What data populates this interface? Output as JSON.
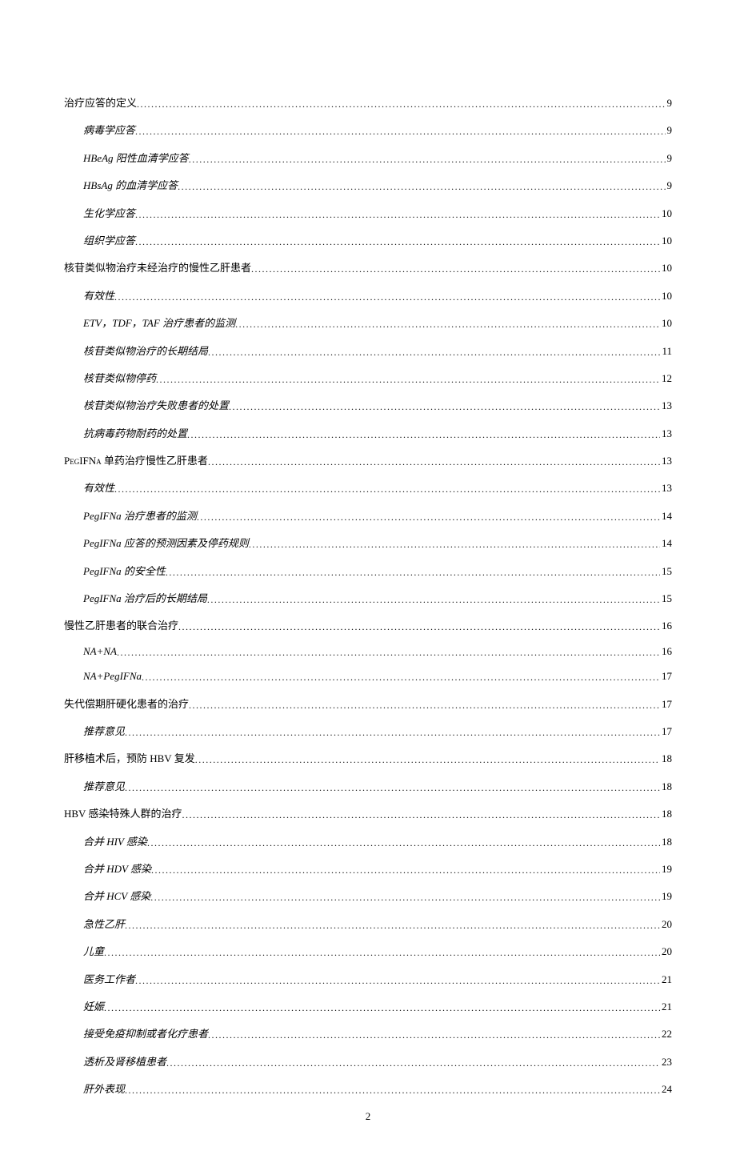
{
  "page_number": "2",
  "toc": [
    {
      "level": 0,
      "italic": false,
      "title": "治疗应答的定义",
      "page": "9"
    },
    {
      "level": 1,
      "italic": true,
      "title": "病毒学应答",
      "page": "9"
    },
    {
      "level": 1,
      "italic": true,
      "title": "HBeAg 阳性血清学应答",
      "page": "9"
    },
    {
      "level": 1,
      "italic": true,
      "title": "HBsAg 的血清学应答",
      "page": "9"
    },
    {
      "level": 1,
      "italic": true,
      "title": "生化学应答",
      "page": "10"
    },
    {
      "level": 1,
      "italic": true,
      "title": "组织学应答",
      "page": "10"
    },
    {
      "level": 0,
      "italic": false,
      "title": "核苷类似物治疗未经治疗的慢性乙肝患者",
      "page": "10"
    },
    {
      "level": 1,
      "italic": true,
      "title": "有效性",
      "page": "10"
    },
    {
      "level": 1,
      "italic": true,
      "title": "ETV，TDF，TAF 治疗患者的监测",
      "page": "10"
    },
    {
      "level": 1,
      "italic": true,
      "title": "核苷类似物治疗的长期结局",
      "page": "11"
    },
    {
      "level": 1,
      "italic": true,
      "title": "核苷类似物停药",
      "page": "12"
    },
    {
      "level": 1,
      "italic": true,
      "title": "核苷类似物治疗失败患者的处置",
      "page": "13"
    },
    {
      "level": 1,
      "italic": true,
      "title": "抗病毒药物耐药的处置",
      "page": "13"
    },
    {
      "level": 0,
      "italic": false,
      "smallcaps": true,
      "title": "PegIFNa 单药治疗慢性乙肝患者",
      "page": "13"
    },
    {
      "level": 1,
      "italic": true,
      "title": "有效性",
      "page": "13"
    },
    {
      "level": 1,
      "italic": true,
      "title": "PegIFNa 治疗患者的监测",
      "page": "14"
    },
    {
      "level": 1,
      "italic": true,
      "title": "PegIFNa 应答的预测因素及停药规则",
      "page": "14"
    },
    {
      "level": 1,
      "italic": true,
      "title": "PegIFNa 的安全性",
      "page": "15"
    },
    {
      "level": 1,
      "italic": true,
      "title": "PegIFNa 治疗后的长期结局",
      "page": "15"
    },
    {
      "level": 0,
      "italic": false,
      "title": "慢性乙肝患者的联合治疗",
      "page": "16"
    },
    {
      "level": 1,
      "italic": true,
      "title": "NA+NA",
      "page": "16"
    },
    {
      "level": 1,
      "italic": true,
      "title": "NA+PegIFNa",
      "page": "17"
    },
    {
      "level": 0,
      "italic": false,
      "title": "失代偿期肝硬化患者的治疗",
      "page": "17"
    },
    {
      "level": 1,
      "italic": true,
      "title": "推荐意见",
      "page": "17"
    },
    {
      "level": 0,
      "italic": false,
      "title": "肝移植术后，预防 HBV 复发",
      "page": "18"
    },
    {
      "level": 1,
      "italic": true,
      "title": "推荐意见",
      "page": "18"
    },
    {
      "level": 0,
      "italic": false,
      "title": "HBV 感染特殊人群的治疗",
      "page": "18"
    },
    {
      "level": 1,
      "italic": true,
      "title": "合并 HIV 感染",
      "page": "18"
    },
    {
      "level": 1,
      "italic": true,
      "title": "合并 HDV 感染",
      "page": "19"
    },
    {
      "level": 1,
      "italic": true,
      "title": "合并 HCV 感染",
      "page": "19"
    },
    {
      "level": 1,
      "italic": true,
      "title": "急性乙肝",
      "page": "20"
    },
    {
      "level": 1,
      "italic": true,
      "title": "儿童",
      "page": "20"
    },
    {
      "level": 1,
      "italic": true,
      "title": "医务工作者",
      "page": "21"
    },
    {
      "level": 1,
      "italic": true,
      "title": "妊娠",
      "page": "21"
    },
    {
      "level": 1,
      "italic": true,
      "title": "接受免疫抑制或者化疗患者",
      "page": "22"
    },
    {
      "level": 1,
      "italic": true,
      "title": "透析及肾移植患者",
      "page": "23"
    },
    {
      "level": 1,
      "italic": true,
      "title": "肝外表现",
      "page": "24"
    }
  ]
}
